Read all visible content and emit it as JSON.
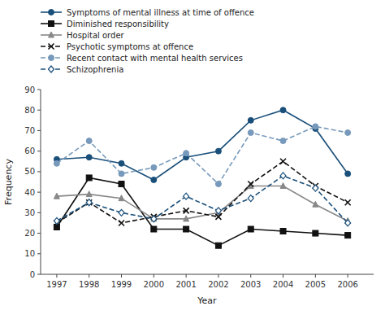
{
  "chart_data": {
    "type": "line",
    "xlabel": "Year",
    "ylabel": "Frequency",
    "x": [
      1997,
      1998,
      1999,
      2000,
      2001,
      2002,
      2003,
      2004,
      2005,
      2006
    ],
    "series": [
      {
        "name": "Symptoms of mental illness at time of offence",
        "color": "#1a4f7a",
        "marker": "circle",
        "line_style": "solid",
        "values": [
          56,
          57,
          54,
          46,
          57,
          60,
          75,
          80,
          71,
          49
        ]
      },
      {
        "name": "Diminished responsibility",
        "color": "#111111",
        "marker": "square",
        "line_style": "solid",
        "values": [
          23,
          47,
          44,
          22,
          22,
          14,
          22,
          21,
          20,
          19
        ]
      },
      {
        "name": "Hospital order",
        "color": "#888888",
        "marker": "triangle",
        "line_style": "solid",
        "values": [
          38,
          39,
          37,
          27,
          27,
          30,
          43,
          43,
          34,
          26
        ]
      },
      {
        "name": "Psychotic symptoms at offence",
        "color": "#111111",
        "marker": "x",
        "line_style": "dashed",
        "values": [
          25,
          35,
          25,
          28,
          31,
          28,
          44,
          55,
          43,
          35
        ]
      },
      {
        "name": "Recent contact with mental health services",
        "color": "#7799bb",
        "marker": "circle",
        "line_style": "dashed",
        "values": [
          54,
          65,
          49,
          52,
          59,
          44,
          69,
          65,
          72,
          69
        ]
      },
      {
        "name": "Schizophrenia",
        "color": "#1a4f7a",
        "marker": "diamond-open",
        "line_style": "dashed",
        "values": [
          26,
          35,
          30,
          27,
          38,
          31,
          37,
          48,
          42,
          25
        ]
      }
    ],
    "xlim": [
      1996.5,
      2006.8
    ],
    "xticks": [
      1997,
      1998,
      1999,
      2000,
      2001,
      2002,
      2003,
      2004,
      2005,
      2006
    ],
    "ylim": [
      0,
      90
    ],
    "yticks": [
      0,
      10,
      20,
      30,
      40,
      50,
      60,
      70,
      80,
      90
    ],
    "grid": false,
    "legend": "upper left"
  }
}
